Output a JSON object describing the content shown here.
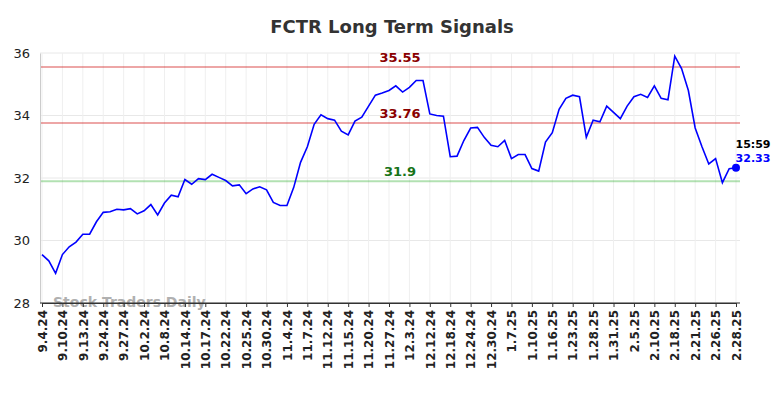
{
  "chart_data": {
    "type": "line",
    "title": "FCTR Long Term Signals",
    "watermark": "Stock Traders Daily",
    "color": "#0000ff",
    "grid": true,
    "marker": "circle",
    "ylim": [
      28,
      36
    ],
    "yticks": [
      28,
      30,
      32,
      34,
      36
    ],
    "categories": [
      "9.4.24",
      null,
      null,
      "9.10.24",
      null,
      null,
      "9.13.24",
      null,
      null,
      "9.24.24",
      null,
      null,
      "9.27.24",
      null,
      null,
      "10.2.24",
      null,
      null,
      "10.8.24",
      null,
      null,
      "10.14.24",
      null,
      null,
      "10.17.24",
      null,
      null,
      "10.22.24",
      null,
      null,
      "10.25.24",
      null,
      null,
      "10.30.24",
      null,
      null,
      "11.4.24",
      null,
      null,
      "11.7.24",
      null,
      null,
      "11.12.24",
      null,
      null,
      "11.15.24",
      null,
      null,
      "11.20.24",
      null,
      null,
      "11.27.24",
      null,
      null,
      "12.3.24",
      null,
      null,
      "12.12.24",
      null,
      null,
      "12.18.24",
      null,
      null,
      "12.24.24",
      null,
      null,
      "12.30.24",
      null,
      null,
      "1.7.25",
      null,
      null,
      "1.10.25",
      null,
      null,
      "1.16.25",
      null,
      null,
      "1.23.25",
      null,
      null,
      "1.28.25",
      null,
      null,
      "1.31.25",
      null,
      null,
      "2.5.25",
      null,
      null,
      "2.10.25",
      null,
      null,
      "2.18.25",
      null,
      null,
      "2.21.25",
      null,
      null,
      "2.26.25",
      null,
      null,
      "2.28.25"
    ],
    "values": [
      29.55,
      29.35,
      28.95,
      29.55,
      29.8,
      29.95,
      30.2,
      30.2,
      30.6,
      30.9,
      30.92,
      31.0,
      30.98,
      31.02,
      30.85,
      30.95,
      31.15,
      30.82,
      31.2,
      31.45,
      31.4,
      31.95,
      31.8,
      31.98,
      31.95,
      32.12,
      32.02,
      31.92,
      31.75,
      31.78,
      31.5,
      31.65,
      31.72,
      31.62,
      31.22,
      31.12,
      31.12,
      31.7,
      32.5,
      33.0,
      33.72,
      34.02,
      33.9,
      33.85,
      33.5,
      33.38,
      33.82,
      33.95,
      34.3,
      34.65,
      34.72,
      34.8,
      34.95,
      34.75,
      34.9,
      35.12,
      35.12,
      34.05,
      34.0,
      33.98,
      32.68,
      32.7,
      33.2,
      33.6,
      33.62,
      33.3,
      33.05,
      33.0,
      33.2,
      32.62,
      32.75,
      32.75,
      32.3,
      32.22,
      33.15,
      33.45,
      34.2,
      34.55,
      34.65,
      34.6,
      33.3,
      33.85,
      33.8,
      34.3,
      34.1,
      33.9,
      34.3,
      34.6,
      34.68,
      34.58,
      34.95,
      34.55,
      34.5,
      35.9,
      35.5,
      34.8,
      33.6,
      33.0,
      32.45,
      32.62,
      31.85,
      32.3,
      32.33
    ],
    "annotations": [
      {
        "value": 35.55,
        "color": "#cc0000"
      },
      {
        "value": 33.76,
        "color": "#cc0000"
      },
      {
        "value": 31.9,
        "color": "#22aa22"
      }
    ],
    "last_point": {
      "label": "15:59"
    }
  }
}
